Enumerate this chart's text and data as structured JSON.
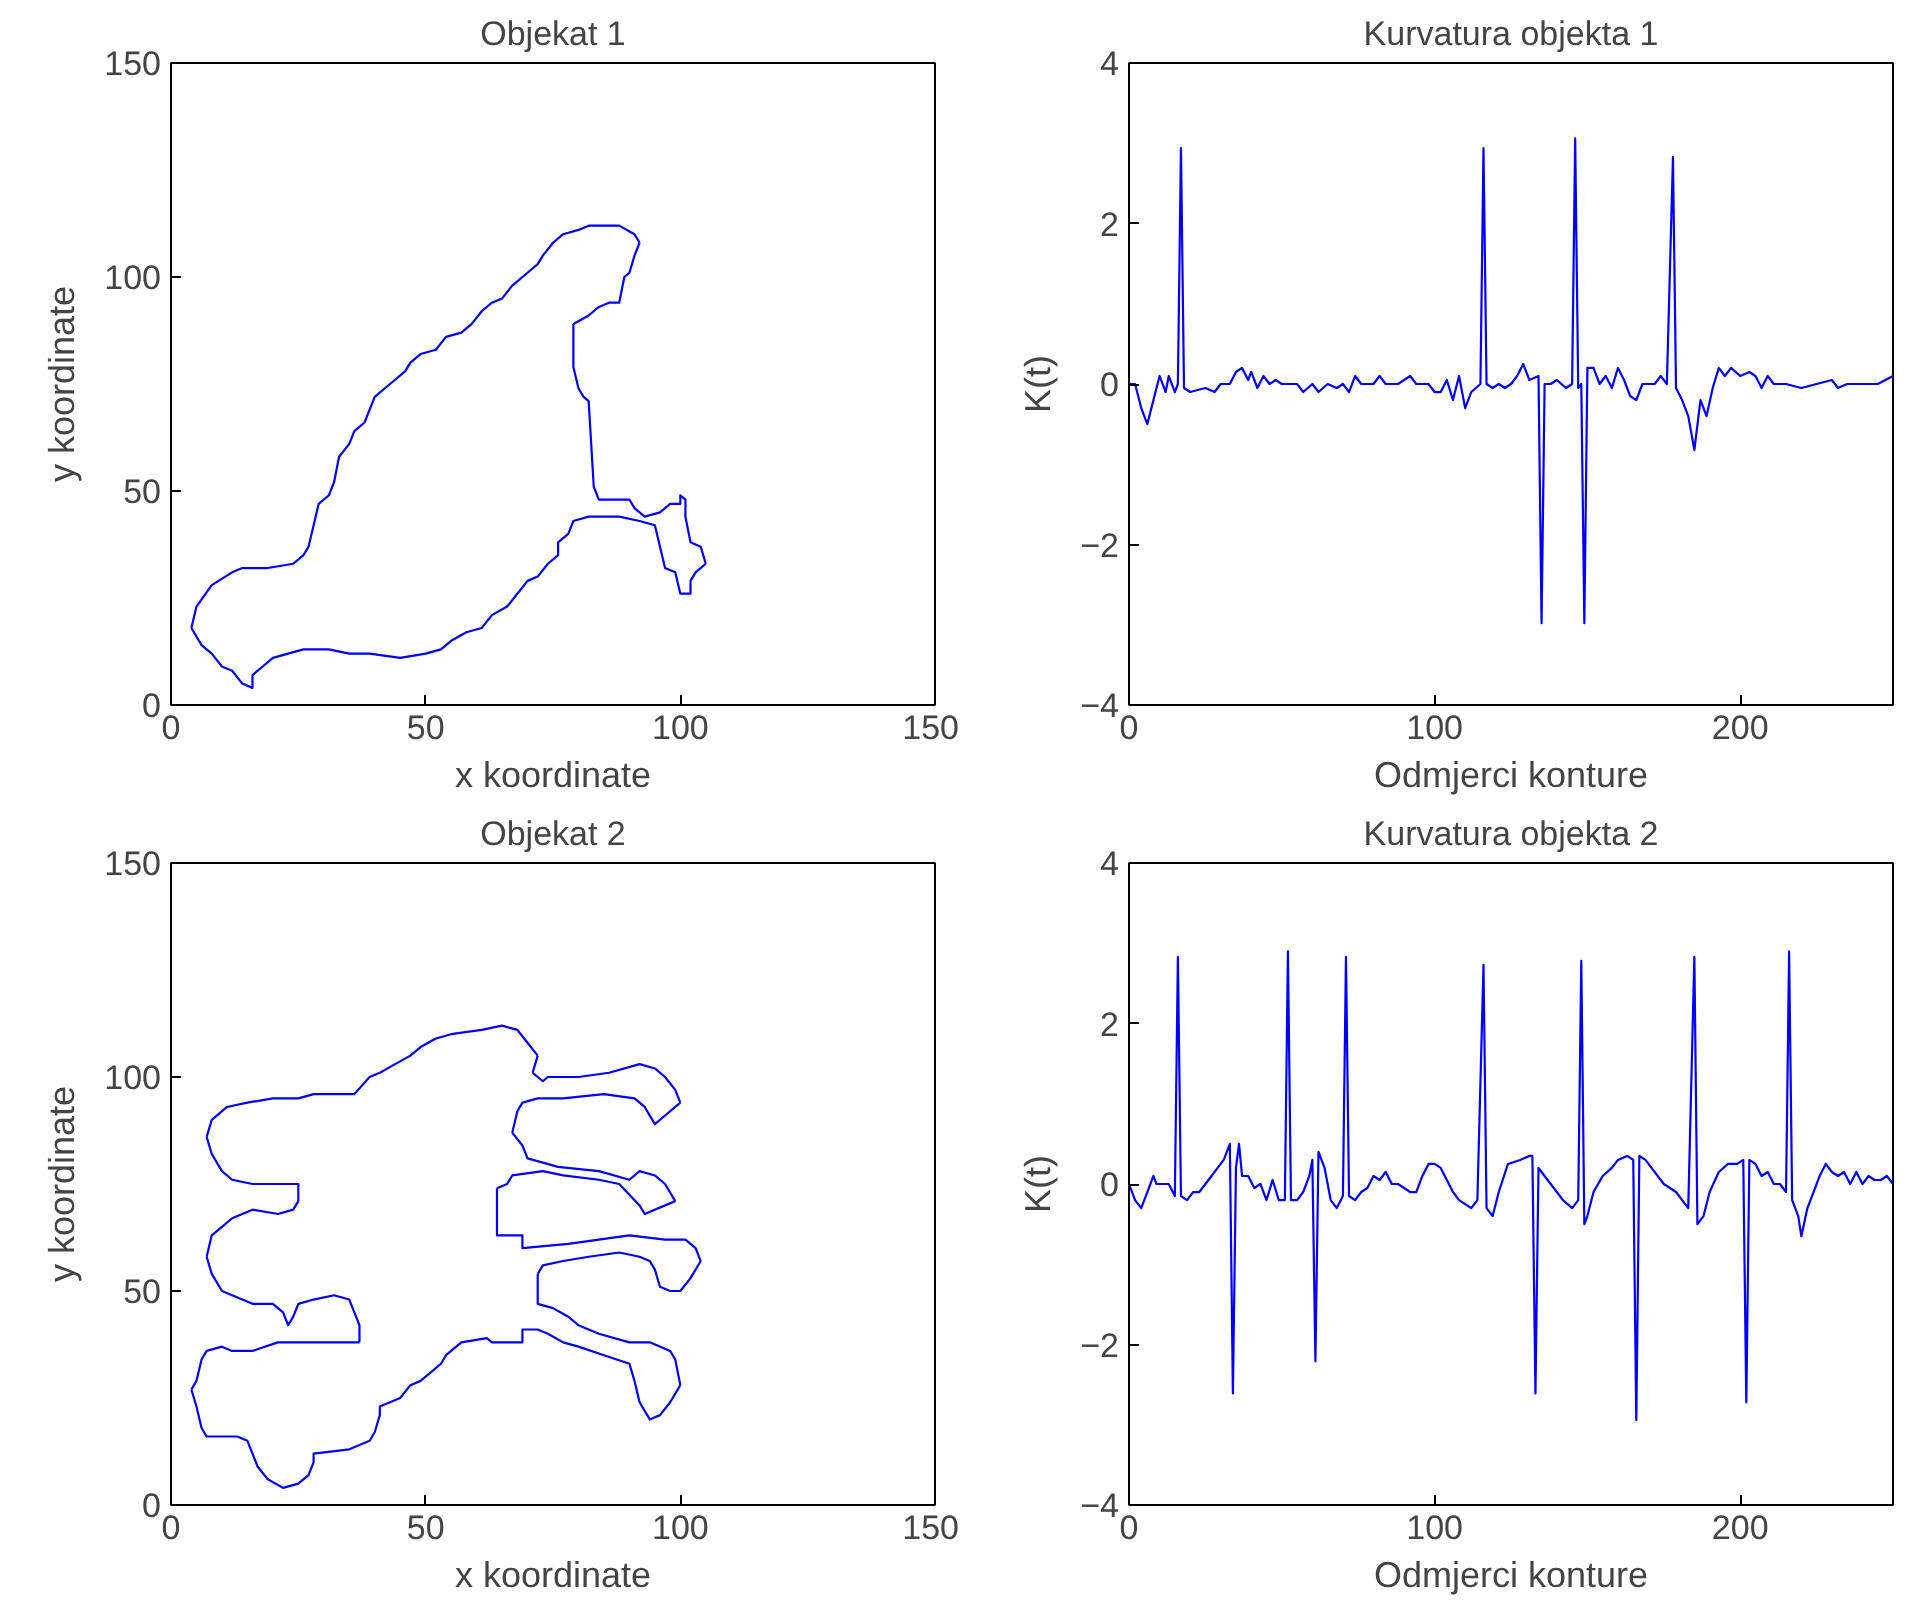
{
  "chart_data": [
    {
      "type": "line",
      "title": "Objekat 1",
      "xlabel": "x koordinate",
      "ylabel": "y koordinate",
      "xlim": [
        0,
        150
      ],
      "ylim": [
        0,
        150
      ],
      "xticks": [
        0,
        50,
        100,
        150
      ],
      "yticks": [
        0,
        50,
        100,
        150
      ],
      "series": [
        {
          "color": "#0000ff",
          "x": [
            4,
            5,
            8,
            12,
            14,
            19,
            24,
            26,
            27,
            28,
            29,
            31,
            32,
            33,
            35,
            36,
            38,
            39,
            40,
            42,
            44,
            46,
            47,
            49,
            52,
            54,
            57,
            59,
            61,
            63,
            65,
            67,
            70,
            72,
            73,
            75,
            77,
            80,
            82,
            85,
            88,
            91,
            92
          ],
          "values": [
            18,
            23,
            28,
            31,
            32,
            32,
            33,
            35,
            37,
            42,
            47,
            49,
            52,
            58,
            61,
            64,
            66,
            69,
            72,
            74,
            76,
            78,
            80,
            82,
            83,
            86,
            87,
            89,
            92,
            94,
            95,
            98,
            101,
            103,
            105,
            108,
            110,
            111,
            112,
            112,
            112,
            110,
            108
          ]
        },
        {
          "color": "#0000ff",
          "x": [
            92,
            91,
            90,
            89,
            88,
            86,
            84,
            82,
            79
          ],
          "values": [
            108,
            105,
            101,
            100,
            94,
            94,
            93,
            91,
            89
          ]
        },
        {
          "color": "#0000ff",
          "x": [
            79,
            79,
            80,
            81,
            82,
            83,
            84,
            90,
            91,
            93,
            96,
            98,
            100,
            100,
            101,
            101,
            102,
            104,
            105
          ],
          "values": [
            89,
            79,
            74,
            72,
            71,
            51,
            48,
            48,
            46,
            44,
            45,
            47,
            47,
            49,
            48,
            44,
            38,
            37,
            33
          ]
        },
        {
          "color": "#0000ff",
          "x": [
            105,
            103,
            102,
            102,
            100,
            99,
            97,
            96,
            95,
            92,
            88,
            82,
            79,
            78,
            76,
            76,
            74,
            72,
            70,
            68,
            66,
            63,
            61,
            58,
            55,
            53,
            50,
            45,
            39,
            35,
            31,
            26,
            23,
            20,
            18,
            16,
            16,
            14,
            12,
            10,
            8,
            6,
            5,
            4
          ],
          "values": [
            33,
            31,
            29,
            26,
            26,
            31,
            32,
            37,
            42,
            43,
            44,
            44,
            43,
            40,
            38,
            35,
            33,
            30,
            29,
            26,
            23,
            21,
            18,
            17,
            15,
            13,
            12,
            11,
            12,
            12,
            13,
            13,
            12,
            11,
            9,
            7,
            4,
            5,
            8,
            9,
            12,
            14,
            16,
            18
          ]
        }
      ]
    },
    {
      "type": "line",
      "title": "Kurvatura objekta 1",
      "xlabel": "Odmjerci konture",
      "ylabel": "K(t)",
      "xlim": [
        0,
        250
      ],
      "ylim": [
        -4,
        4
      ],
      "xticks": [
        0,
        100,
        200
      ],
      "yticks": [
        -4,
        -2,
        0,
        2,
        4
      ],
      "series": [
        {
          "color": "#0000ff",
          "x": [
            0,
            2,
            4,
            6,
            8,
            10,
            12,
            13,
            15,
            16,
            17,
            18,
            20,
            25,
            28,
            30,
            33,
            35,
            37,
            39,
            40,
            42,
            44,
            46,
            48,
            50,
            55,
            57,
            60,
            62,
            65,
            68,
            70,
            72,
            74,
            76,
            80,
            82,
            84,
            88,
            92,
            94,
            98,
            100,
            102,
            104,
            106,
            108,
            110,
            112,
            115,
            116,
            117,
            119,
            121,
            123,
            125,
            127,
            129,
            131,
            134,
            135,
            136,
            138,
            140,
            143,
            145,
            146,
            147,
            148,
            149,
            150,
            152,
            154,
            156,
            158,
            160,
            162,
            164,
            166,
            168,
            170,
            172,
            174,
            176,
            178,
            179,
            181,
            183,
            185,
            187,
            189,
            191,
            193,
            195,
            197,
            200,
            203,
            205,
            207,
            209,
            211,
            215,
            220,
            225,
            230,
            232,
            235,
            240,
            245,
            250
          ],
          "values": [
            0,
            0,
            -0.3,
            -0.5,
            -0.2,
            0.1,
            -0.1,
            0.1,
            -0.1,
            0,
            2.94,
            -0.05,
            -0.1,
            -0.05,
            -0.1,
            0,
            0,
            0.15,
            0.2,
            0.05,
            0.15,
            -0.05,
            0.1,
            0,
            0.05,
            0,
            0,
            -0.1,
            0,
            -0.1,
            0,
            -0.05,
            0,
            -0.1,
            0.1,
            0,
            0,
            0.1,
            0,
            0,
            0.1,
            0,
            0,
            -0.1,
            -0.1,
            0.05,
            -0.2,
            0.1,
            -0.3,
            -0.1,
            0,
            2.94,
            0,
            -0.05,
            0,
            -0.05,
            0,
            0.1,
            0.25,
            0.05,
            0.1,
            -2.98,
            0,
            0,
            0.05,
            -0.05,
            0,
            3.06,
            -0.05,
            0,
            -2.98,
            0.2,
            0.2,
            0,
            0.1,
            -0.05,
            0.2,
            0.05,
            -0.15,
            -0.2,
            0,
            0,
            0,
            0.1,
            0,
            2.83,
            -0.05,
            -0.2,
            -0.4,
            -0.82,
            -0.2,
            -0.4,
            -0.05,
            0.2,
            0.1,
            0.2,
            0.1,
            0.15,
            0.1,
            -0.05,
            0.1,
            0,
            0,
            -0.05,
            0,
            0.05,
            -0.05,
            0,
            0,
            0,
            0.1
          ]
        }
      ]
    },
    {
      "type": "line",
      "title": "Objekat 2",
      "xlabel": "x koordinate",
      "ylabel": "y koordinate",
      "xlim": [
        0,
        150
      ],
      "ylim": [
        0,
        150
      ],
      "xticks": [
        0,
        50,
        100,
        150
      ],
      "yticks": [
        0,
        50,
        100,
        150
      ],
      "series": [
        {
          "color": "#0000ff",
          "x": [
            4,
            5,
            6,
            7,
            13,
            15,
            17,
            19,
            22,
            25,
            27,
            28,
            28,
            35,
            39,
            40,
            41,
            41,
            45,
            47,
            49,
            51,
            53,
            54,
            57,
            62,
            63,
            69,
            69,
            72,
            74,
            77,
            80,
            85,
            90,
            91,
            92,
            94,
            96,
            98,
            100
          ],
          "values": [
            27,
            23,
            18,
            16,
            16,
            15,
            9,
            6,
            4,
            5,
            7,
            10,
            12,
            13,
            15,
            17,
            21,
            23,
            25,
            28,
            29,
            31,
            33,
            35,
            38,
            39,
            38,
            38,
            41,
            41,
            40,
            38,
            37,
            35,
            33,
            29,
            24,
            20,
            21,
            24,
            28
          ]
        },
        {
          "color": "#0000ff",
          "x": [
            100,
            99,
            98,
            94,
            90,
            84,
            80,
            78,
            75,
            72,
            72
          ],
          "values": [
            28,
            34,
            36,
            38,
            38,
            40,
            42,
            44,
            46,
            47,
            54
          ]
        },
        {
          "color": "#0000ff",
          "x": [
            72,
            73,
            77,
            82,
            88,
            92,
            94,
            95,
            96,
            98,
            100,
            102,
            104
          ],
          "values": [
            54,
            56,
            57,
            58,
            59,
            58,
            57,
            55,
            51,
            50,
            50,
            53,
            57
          ]
        },
        {
          "color": "#0000ff",
          "x": [
            104,
            103,
            101,
            97,
            90,
            84,
            78,
            69,
            69,
            64,
            64
          ],
          "values": [
            57,
            60,
            62,
            62,
            63,
            62,
            61,
            60,
            63,
            63,
            74
          ]
        },
        {
          "color": "#0000ff",
          "x": [
            64,
            66,
            67,
            73,
            77,
            84,
            88,
            92,
            93,
            99
          ],
          "values": [
            74,
            75,
            77,
            78,
            77,
            76,
            75,
            70,
            68,
            71
          ]
        },
        {
          "color": "#0000ff",
          "x": [
            99,
            97,
            95,
            92,
            90,
            84,
            76,
            70,
            69,
            67
          ],
          "values": [
            71,
            75,
            77,
            78,
            76,
            78,
            79,
            81,
            84,
            87
          ]
        },
        {
          "color": "#0000ff",
          "x": [
            67,
            68,
            69,
            72,
            77,
            85,
            91,
            93,
            95,
            97,
            100
          ],
          "values": [
            87,
            92,
            94,
            95,
            95,
            96,
            95,
            93,
            89,
            91,
            94
          ]
        },
        {
          "color": "#0000ff",
          "x": [
            100,
            99,
            97,
            95,
            92,
            86,
            80,
            74,
            73,
            71
          ],
          "values": [
            94,
            97,
            100,
            102,
            103,
            101,
            100,
            100,
            99,
            101
          ]
        },
        {
          "color": "#0000ff",
          "x": [
            71,
            72
          ],
          "values": [
            101,
            105
          ]
        },
        {
          "color": "#0000ff",
          "x": [
            72,
            70,
            68,
            65,
            61,
            55,
            52,
            49,
            47,
            44,
            41,
            39,
            36,
            33,
            28,
            25,
            20,
            15,
            11,
            8,
            7
          ],
          "values": [
            105,
            108,
            111,
            112,
            111,
            110,
            109,
            107,
            105,
            103,
            101,
            100,
            96,
            96,
            96,
            95,
            95,
            94,
            93,
            90,
            86
          ]
        },
        {
          "color": "#0000ff",
          "x": [
            7,
            8,
            10,
            12,
            16,
            21,
            25,
            25
          ],
          "values": [
            86,
            82,
            78,
            76,
            75,
            75,
            75,
            71
          ]
        },
        {
          "color": "#0000ff",
          "x": [
            25,
            24,
            21,
            16,
            14,
            12,
            10,
            8,
            7
          ],
          "values": [
            71,
            69,
            68,
            69,
            68,
            67,
            65,
            63,
            58
          ]
        },
        {
          "color": "#0000ff",
          "x": [
            7,
            8,
            10,
            12,
            16,
            20,
            22,
            23,
            24,
            25,
            28,
            32,
            35,
            36,
            37,
            37
          ],
          "values": [
            58,
            54,
            50,
            49,
            47,
            47,
            45,
            42,
            44,
            47,
            48,
            49,
            48,
            45,
            42,
            38
          ]
        },
        {
          "color": "#0000ff",
          "x": [
            37,
            30,
            21,
            16,
            12,
            10,
            7,
            6,
            5,
            4
          ],
          "values": [
            38,
            38,
            38,
            36,
            36,
            37,
            36,
            34,
            29,
            27
          ]
        }
      ]
    },
    {
      "type": "line",
      "title": "Kurvatura objekta 2",
      "xlabel": "Odmjerci konture",
      "ylabel": "K(t)",
      "xlim": [
        0,
        250
      ],
      "ylim": [
        -4,
        4
      ],
      "xticks": [
        0,
        100,
        200
      ],
      "yticks": [
        -4,
        -2,
        0,
        2,
        4
      ],
      "series": [
        {
          "color": "#0000ff",
          "x": [
            0,
            2,
            4,
            6,
            8,
            9,
            11,
            13,
            15,
            16,
            17,
            19,
            21,
            23,
            25,
            27,
            29,
            31,
            33,
            34,
            35,
            36,
            37,
            39,
            41,
            43,
            45,
            47,
            49,
            51,
            52,
            53,
            55,
            57,
            59,
            60,
            61,
            62,
            64,
            66,
            68,
            70,
            71,
            72,
            74,
            76,
            78,
            80,
            82,
            84,
            86,
            88,
            90,
            92,
            94,
            96,
            98,
            100,
            102,
            104,
            106,
            108,
            110,
            112,
            114,
            116,
            117,
            119,
            121,
            124,
            128,
            131,
            132,
            133,
            134,
            136,
            138,
            140,
            142,
            145,
            147,
            148,
            149,
            150,
            152,
            155,
            158,
            160,
            163,
            165,
            166,
            167,
            169,
            171,
            173,
            175,
            177,
            179,
            181,
            183,
            185,
            186,
            188,
            190,
            193,
            196,
            199,
            201,
            202,
            203,
            205,
            207,
            209,
            211,
            213,
            215,
            216,
            217,
            219,
            220,
            222,
            224,
            226,
            228,
            230,
            232,
            234,
            236,
            238,
            240,
            242,
            244,
            246,
            248,
            250
          ],
          "values": [
            0,
            -0.2,
            -0.3,
            -0.1,
            0.1,
            0,
            0,
            0,
            -0.15,
            2.83,
            -0.15,
            -0.2,
            -0.1,
            -0.1,
            0,
            0.1,
            0.2,
            0.3,
            0.5,
            -2.61,
            0.2,
            0.5,
            0.1,
            0.1,
            -0.05,
            0,
            -0.2,
            0.05,
            -0.2,
            -0.2,
            2.9,
            -0.2,
            -0.2,
            -0.1,
            0.1,
            0.3,
            -2.21,
            0.4,
            0.2,
            -0.2,
            -0.3,
            -0.15,
            2.83,
            -0.15,
            -0.2,
            -0.1,
            -0.05,
            0.1,
            0.05,
            0.15,
            0,
            0,
            -0.05,
            -0.1,
            -0.1,
            0.1,
            0.25,
            0.25,
            0.2,
            0.05,
            -0.1,
            -0.2,
            -0.25,
            -0.3,
            -0.2,
            2.73,
            -0.3,
            -0.4,
            -0.1,
            0.25,
            0.3,
            0.35,
            0.35,
            -2.61,
            0.2,
            0.1,
            0,
            -0.1,
            -0.2,
            -0.3,
            -0.2,
            2.78,
            -0.5,
            -0.4,
            -0.1,
            0.1,
            0.2,
            0.3,
            0.35,
            0.3,
            -2.94,
            0.35,
            0.3,
            0.2,
            0.1,
            0,
            -0.05,
            -0.1,
            -0.2,
            -0.3,
            2.83,
            -0.5,
            -0.4,
            -0.1,
            0.15,
            0.25,
            0.25,
            0.3,
            -2.72,
            0.3,
            0.25,
            0.1,
            0.15,
            0,
            0,
            -0.1,
            2.9,
            -0.2,
            -0.4,
            -0.65,
            -0.3,
            -0.1,
            0.1,
            0.25,
            0.15,
            0.1,
            0.15,
            0,
            0.15,
            0,
            0.1,
            0.05,
            0.05,
            0.1,
            0
          ]
        }
      ]
    }
  ]
}
